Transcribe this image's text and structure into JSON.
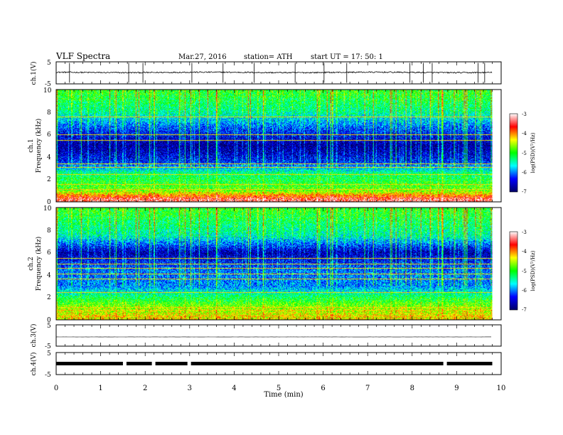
{
  "header": {
    "title": "VLF  Spectra",
    "date": "Mar.27, 2016",
    "station": "station= ATH",
    "start": "start  UT  =    17: 50: 1"
  },
  "chart_data": [
    {
      "type": "line",
      "panel": "ch1_waveform",
      "ylabel": "ch.1(V)",
      "yticks": [
        "5",
        "-5"
      ],
      "ylim": [
        -5,
        5
      ],
      "baseline_v": 0.2,
      "noise_amp_v": 0.3,
      "spikes_min": [
        0.3,
        1.63,
        1.95,
        3.05,
        3.75,
        4.45,
        5.37,
        6.02,
        6.53,
        7.95,
        8.25,
        8.45,
        9.48,
        9.63
      ]
    },
    {
      "type": "heatmap",
      "panel": "ch1_spectrogram",
      "ylabel": "ch.1\nFrequency  (kHz)",
      "ylim": [
        0,
        10
      ],
      "yticks": [
        "0",
        "2",
        "4",
        "6",
        "8",
        "10"
      ],
      "zlabel": "log(PSD)(V²/Hz)",
      "zlim": [
        -7,
        -3
      ],
      "zticks": [
        "-3",
        "-4",
        "-5",
        "-6",
        "-7"
      ],
      "colormap": [
        "#000066",
        "#0000ff",
        "#00ffff",
        "#00ff00",
        "#ffff00",
        "#ff0000",
        "#ffffff"
      ],
      "band_profile_khz_logpsd": [
        [
          0.2,
          -3.4
        ],
        [
          1.0,
          -4.8
        ],
        [
          2.5,
          -5.3
        ],
        [
          3.5,
          -6.3
        ],
        [
          5.0,
          -6.8
        ],
        [
          6.5,
          -6.2
        ],
        [
          8.0,
          -5.4
        ],
        [
          9.7,
          -5.0
        ]
      ],
      "lines_khz": [
        0.3,
        0.6,
        1.1,
        1.5,
        2.4,
        3.05,
        3.35,
        5.5,
        6.0,
        7.55
      ]
    },
    {
      "type": "heatmap",
      "panel": "ch2_spectrogram",
      "ylabel": "ch.2\nFrequency  (kHz)",
      "ylim": [
        0,
        10
      ],
      "yticks": [
        "0",
        "2",
        "4",
        "6",
        "8",
        "10"
      ],
      "zlabel": "log(PSD)(V²/Hz)",
      "zlim": [
        -7,
        -3
      ],
      "zticks": [
        "-3",
        "-4",
        "-5",
        "-6",
        "-7"
      ],
      "colormap": [
        "#000066",
        "#0000ff",
        "#00ffff",
        "#00ff00",
        "#ffff00",
        "#ff0000",
        "#ffffff"
      ],
      "band_profile_khz_logpsd": [
        [
          0.2,
          -4.3
        ],
        [
          1.0,
          -4.6
        ],
        [
          2.0,
          -5.2
        ],
        [
          3.0,
          -6.0
        ],
        [
          4.5,
          -6.1
        ],
        [
          6.0,
          -6.7
        ],
        [
          7.5,
          -5.5
        ],
        [
          9.7,
          -5.0
        ]
      ],
      "lines_khz": [
        0.3,
        0.8,
        1.1,
        2.4,
        3.6,
        4.1,
        4.6,
        5.0,
        5.5
      ]
    },
    {
      "type": "line",
      "panel": "ch3_waveform",
      "ylabel": "ch.3(V)",
      "yticks": [
        "5",
        "-5"
      ],
      "ylim": [
        -5,
        5
      ],
      "baseline_v": 0,
      "noise_amp_v": 0.05
    },
    {
      "type": "line",
      "panel": "ch4_waveform",
      "ylabel": "ch.4(V)",
      "yticks": [
        "5",
        "-5"
      ],
      "ylim": [
        -5,
        5
      ],
      "baseline_v": 0,
      "noise_amp_v": 0.3,
      "gaps_min": [
        1.53,
        2.18,
        2.98,
        8.73
      ]
    }
  ],
  "time_axis": {
    "xlabel": "Time  (min)",
    "xlim": [
      0,
      10
    ],
    "data_end_min": 9.8,
    "xticks": [
      "0",
      "1",
      "2",
      "3",
      "4",
      "5",
      "6",
      "7",
      "8",
      "9",
      "10"
    ]
  }
}
